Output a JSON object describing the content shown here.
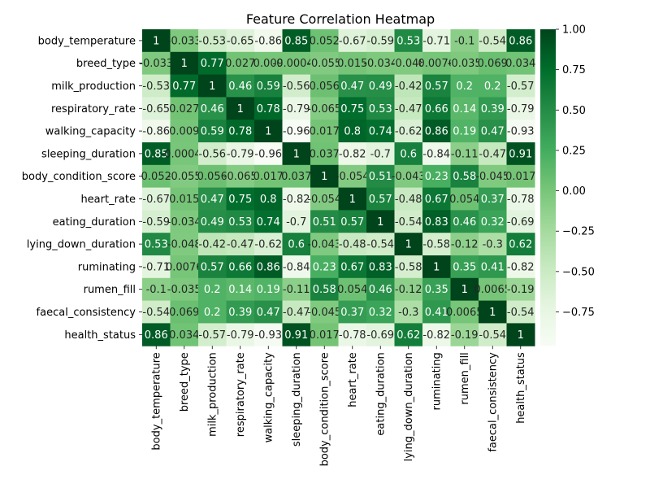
{
  "chart_data": {
    "type": "heatmap",
    "title": "Feature Correlation Heatmap",
    "rows": [
      "body_temperature",
      "breed_type",
      "milk_production",
      "respiratory_rate",
      "walking_capacity",
      "sleeping_duration",
      "body_condition_score",
      "heart_rate",
      "eating_duration",
      "lying_down_duration",
      "ruminating",
      "rumen_fill",
      "faecal_consistency",
      "health_status"
    ],
    "columns": [
      "body_temperature",
      "breed_type",
      "milk_production",
      "respiratory_rate",
      "walking_capacity",
      "sleeping_duration",
      "body_condition_score",
      "heart_rate",
      "eating_duration",
      "lying_down_duration",
      "ruminating",
      "rumen_fill",
      "faecal_consistency",
      "health_status"
    ],
    "values": [
      [
        1,
        -0.033,
        -0.53,
        -0.65,
        -0.86,
        0.85,
        0.052,
        -0.67,
        -0.59,
        0.53,
        -0.71,
        -0.1,
        -0.54,
        0.86
      ],
      [
        -0.033,
        1,
        0.77,
        0.027,
        0.009,
        -0.00047,
        -0.055,
        0.015,
        -0.034,
        -0.048,
        0.0076,
        -0.035,
        0.069,
        0.034
      ],
      [
        -0.53,
        0.77,
        1,
        0.46,
        0.59,
        -0.56,
        0.056,
        0.47,
        0.49,
        -0.42,
        0.57,
        0.2,
        0.2,
        -0.57
      ],
      [
        -0.65,
        0.027,
        0.46,
        1,
        0.78,
        -0.79,
        -0.065,
        0.75,
        0.53,
        -0.47,
        0.66,
        0.14,
        0.39,
        -0.79
      ],
      [
        -0.86,
        0.009,
        0.59,
        0.78,
        1,
        -0.96,
        0.017,
        0.8,
        0.74,
        -0.62,
        0.86,
        0.19,
        0.47,
        -0.93
      ],
      [
        0.85,
        -0.00047,
        -0.56,
        -0.79,
        -0.96,
        1,
        0.037,
        -0.82,
        -0.7,
        0.6,
        -0.84,
        -0.11,
        -0.47,
        0.91
      ],
      [
        0.052,
        -0.055,
        0.056,
        -0.065,
        0.017,
        0.037,
        1,
        -0.054,
        0.51,
        -0.043,
        0.23,
        0.58,
        -0.045,
        0.017
      ],
      [
        -0.67,
        0.015,
        0.47,
        0.75,
        0.8,
        -0.82,
        -0.054,
        1,
        0.57,
        -0.48,
        0.67,
        0.054,
        0.37,
        -0.78
      ],
      [
        -0.59,
        -0.034,
        0.49,
        0.53,
        0.74,
        -0.7,
        0.51,
        0.57,
        1,
        -0.54,
        0.83,
        0.46,
        0.32,
        -0.69
      ],
      [
        0.53,
        -0.048,
        -0.42,
        -0.47,
        -0.62,
        0.6,
        -0.043,
        -0.48,
        -0.54,
        1,
        -0.58,
        -0.12,
        -0.3,
        0.62
      ],
      [
        -0.71,
        0.0076,
        0.57,
        0.66,
        0.86,
        -0.84,
        0.23,
        0.67,
        0.83,
        -0.58,
        1,
        0.35,
        0.41,
        -0.82
      ],
      [
        -0.1,
        -0.035,
        0.2,
        0.14,
        0.19,
        -0.11,
        0.58,
        0.054,
        0.46,
        -0.12,
        0.35,
        1,
        0.0065,
        -0.19
      ],
      [
        -0.54,
        0.069,
        0.2,
        0.39,
        0.47,
        -0.47,
        -0.045,
        0.37,
        0.32,
        -0.3,
        0.41,
        0.0065,
        1,
        -0.54
      ],
      [
        0.86,
        0.034,
        -0.57,
        -0.79,
        -0.93,
        0.91,
        0.017,
        -0.78,
        -0.69,
        0.62,
        -0.82,
        -0.19,
        -0.54,
        1
      ]
    ],
    "color_range": [
      -0.96,
      1
    ],
    "colormap": [
      "#f7fcf5",
      "#e5f5e0",
      "#c7e9c0",
      "#a1d99b",
      "#74c476",
      "#41ab5d",
      "#238b45",
      "#006d2c",
      "#00441b"
    ],
    "colorbar_ticks": [
      1.0,
      0.75,
      0.5,
      0.25,
      0.0,
      -0.25,
      -0.5,
      -0.75
    ],
    "colorbar_tick_labels": [
      "1.00",
      "0.75",
      "0.50",
      "0.25",
      "0.00",
      "−0.25",
      "−0.50",
      "−0.75"
    ],
    "annotations": true
  }
}
